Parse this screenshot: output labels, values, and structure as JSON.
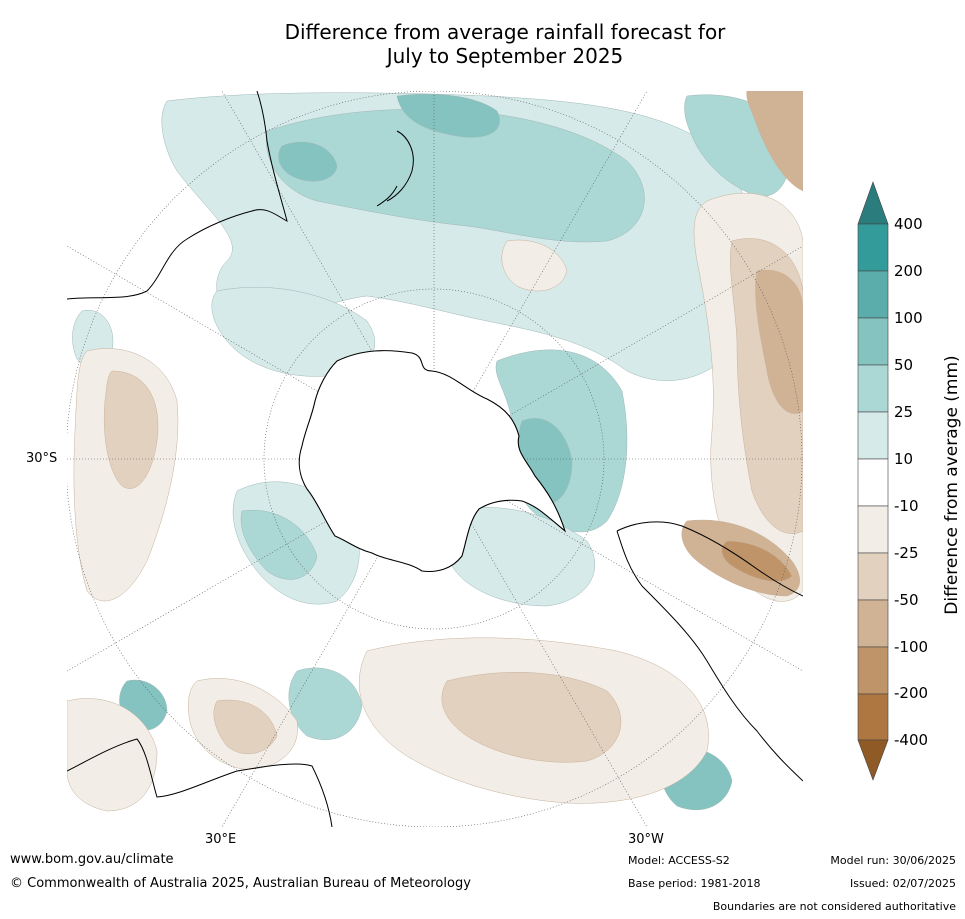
{
  "title_line1": "Difference from average rainfall forecast for",
  "title_line2": "July to September 2025",
  "map": {
    "latitude_label": "30°S",
    "longitude_labels": [
      "30°E",
      "30°W"
    ],
    "projection": "south polar stereographic",
    "region": "Southern Hemisphere (Antarctica centered)"
  },
  "colorbar": {
    "title": "Difference from average (mm)",
    "ticks": [
      "400",
      "200",
      "100",
      "50",
      "25",
      "10",
      "-10",
      "-25",
      "-50",
      "-100",
      "-200",
      "-400"
    ],
    "colors": {
      "gt400": "#2a7d7c",
      "200_400": "#339c9a",
      "100_200": "#5aadab",
      "50_100": "#84c3c0",
      "25_50": "#abd7d5",
      "10_25": "#d5eae9",
      "neutral": "#ffffff",
      "m25_m10": "#f2ede6",
      "m50_m25": "#e3d1bf",
      "m100_m50": "#d0b295",
      "m200_m100": "#bf9469",
      "m400_m200": "#ae7641",
      "lt_m400": "#8f5a25"
    }
  },
  "footer": {
    "website": "www.bom.gov.au/climate",
    "copyright": "© Commonwealth of Australia 2025, Australian Bureau of Meteorology",
    "model": "Model: ACCESS-S2",
    "base_period": "Base period: 1981-2018",
    "model_run": "Model run: 30/06/2025",
    "issued": "Issued: 02/07/2025",
    "disclaimer": "Boundaries are not considered authoritative"
  }
}
